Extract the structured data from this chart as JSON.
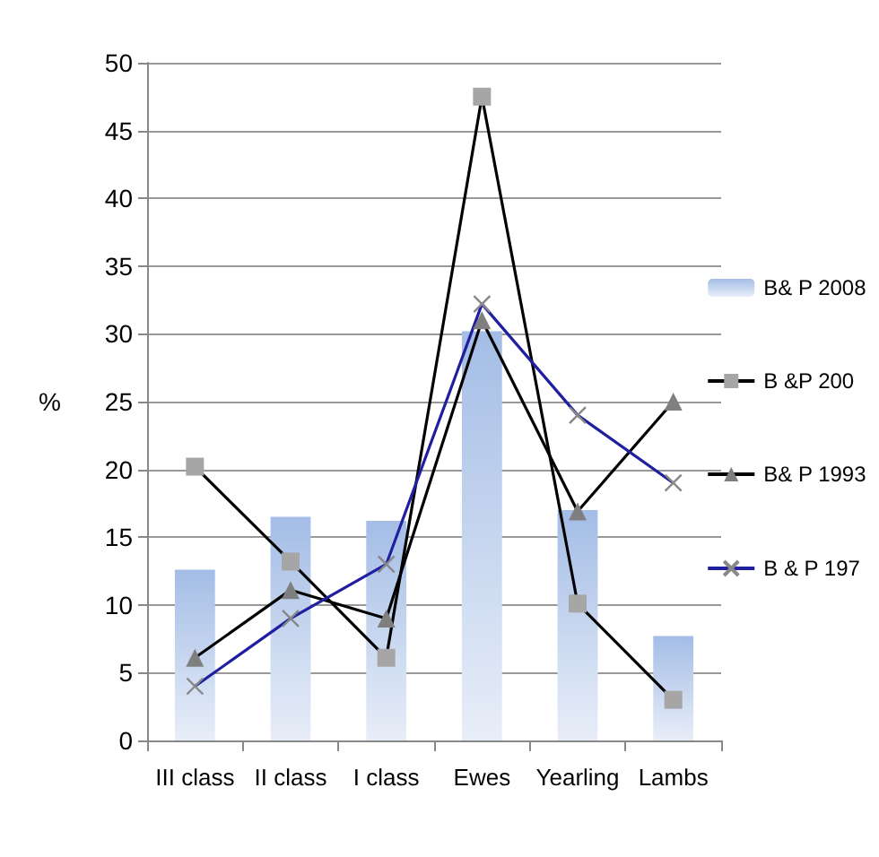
{
  "chart_data": {
    "type": "bar",
    "ylabel": "%",
    "categories": [
      "III class",
      "II class",
      "I class",
      "Ewes",
      "Yearling",
      "Lambs"
    ],
    "ylim": [
      0,
      50
    ],
    "yticks": [
      0,
      5,
      10,
      15,
      20,
      25,
      30,
      35,
      40,
      45,
      50
    ],
    "grid": "y",
    "legend": "right",
    "series": [
      {
        "name": "B& P 2008",
        "color": "#a4bde6",
        "values": [
          12.6,
          16.5,
          16.2,
          30.2,
          17.0,
          7.7
        ]
      },
      {
        "name": "B &P 200",
        "type": "line",
        "marker": "square",
        "color": "#000000",
        "values": [
          20.2,
          13.2,
          6.1,
          47.5,
          10.1,
          3.0
        ]
      },
      {
        "name": "B& P 1993",
        "type": "line",
        "marker": "triangle",
        "color": "#000000",
        "values": [
          6.1,
          11.1,
          9.0,
          31.0,
          16.9,
          25.0
        ]
      },
      {
        "name": "B & P 197",
        "type": "line",
        "marker": "cross",
        "color": "#1f1fa0",
        "values": [
          4.0,
          9.0,
          13.0,
          32.2,
          24.0,
          19.0
        ]
      }
    ]
  }
}
